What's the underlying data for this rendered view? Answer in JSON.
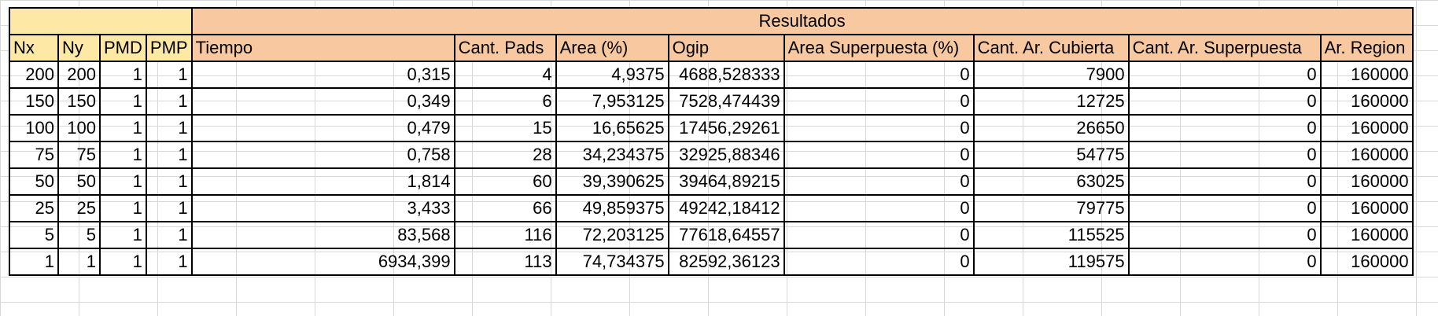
{
  "sheet": {
    "group_header": "Resultados",
    "headers": [
      "Nx",
      "Ny",
      "PMD",
      "PMP",
      "Tiempo",
      "Cant. Pads",
      "Area (%)",
      "Ogip",
      "Area Superpuesta (%)",
      "Cant. Ar. Cubierta",
      "Cant. Ar. Superpuesta",
      "Ar. Region"
    ],
    "rows": [
      [
        "200",
        "200",
        "1",
        "1",
        "0,315",
        "4",
        "4,9375",
        "4688,528333",
        "0",
        "7900",
        "0",
        "160000"
      ],
      [
        "150",
        "150",
        "1",
        "1",
        "0,349",
        "6",
        "7,953125",
        "7528,474439",
        "0",
        "12725",
        "0",
        "160000"
      ],
      [
        "100",
        "100",
        "1",
        "1",
        "0,479",
        "15",
        "16,65625",
        "17456,29261",
        "0",
        "26650",
        "0",
        "160000"
      ],
      [
        "75",
        "75",
        "1",
        "1",
        "0,758",
        "28",
        "34,234375",
        "32925,88346",
        "0",
        "54775",
        "0",
        "160000"
      ],
      [
        "50",
        "50",
        "1",
        "1",
        "1,814",
        "60",
        "39,390625",
        "39464,89215",
        "0",
        "63025",
        "0",
        "160000"
      ],
      [
        "25",
        "25",
        "1",
        "1",
        "3,433",
        "66",
        "49,859375",
        "49242,18412",
        "0",
        "79775",
        "0",
        "160000"
      ],
      [
        "5",
        "5",
        "1",
        "1",
        "83,568",
        "116",
        "72,203125",
        "77618,64557",
        "0",
        "115525",
        "0",
        "160000"
      ],
      [
        "1",
        "1",
        "1",
        "1",
        "6934,399",
        "113",
        "74,734375",
        "82592,36123",
        "0",
        "119575",
        "0",
        "160000"
      ]
    ],
    "colors": {
      "input_header_bg": "#fde8a6",
      "result_header_bg": "#f8c8a0"
    }
  }
}
